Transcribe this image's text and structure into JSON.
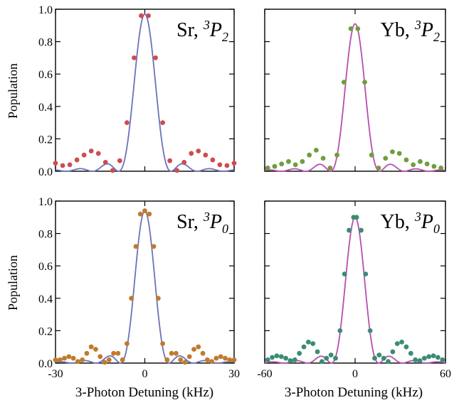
{
  "figure": {
    "ylabel": "Population",
    "xlabel": "3-Photon Detuning (kHz)"
  },
  "chart_data": [
    {
      "type": "scatter",
      "panel": "Sr, 3P2",
      "label": {
        "element": "Sr, ",
        "sup": "3",
        "term": "P",
        "sub": "2"
      },
      "xlim": [
        -30,
        30
      ],
      "ylim": [
        0,
        1
      ],
      "xticks": [
        -30,
        0,
        30
      ],
      "xticklabels": [],
      "yticks": [
        0,
        0.2,
        0.4,
        0.6,
        0.8,
        1.0
      ],
      "yticklabels": [
        "0.0",
        "0.2",
        "0.4",
        "0.6",
        "0.8",
        "1.0"
      ],
      "ylabel": "Population",
      "peak": 0.97,
      "fit_width_khz": 2.8,
      "dot_color": "#cc4d52",
      "line_color": "#6b72bb",
      "x": [
        -30,
        -27.6,
        -25.2,
        -22.8,
        -20.4,
        -18,
        -15.6,
        -13.2,
        -10.8,
        -8.4,
        -6,
        -3.6,
        -1.2,
        1.2,
        3.6,
        6,
        8.4,
        10.8,
        13.2,
        15.6,
        18,
        20.4,
        22.8,
        25.2,
        27.6,
        30
      ],
      "y": [
        0.05,
        0.035,
        0.04,
        0.07,
        0.1,
        0.125,
        0.11,
        0.055,
        0.005,
        0.065,
        0.3,
        0.7,
        0.96,
        0.96,
        0.7,
        0.3,
        0.065,
        0.005,
        0.055,
        0.11,
        0.125,
        0.1,
        0.07,
        0.04,
        0.035,
        0.05
      ]
    },
    {
      "type": "scatter",
      "panel": "Yb, 3P2",
      "label": {
        "element": "Yb, ",
        "sup": "3",
        "term": "P",
        "sub": "2"
      },
      "xlim": [
        -60,
        60
      ],
      "ylim": [
        0,
        1
      ],
      "xticks": [
        -60,
        0,
        60
      ],
      "xticklabels": [],
      "yticks": [
        0,
        0.2,
        0.4,
        0.6,
        0.8,
        1.0
      ],
      "yticklabels": [],
      "peak": 0.91,
      "fit_width_khz": 5.2,
      "dot_color": "#6e9e3e",
      "line_color": "#b84dae",
      "x": [
        -58,
        -53.4,
        -48.8,
        -44.2,
        -39.6,
        -35,
        -30.4,
        -25.8,
        -21.2,
        -16.6,
        -12,
        -7.4,
        -2.8,
        1.8,
        6.4,
        11,
        15.6,
        20.2,
        24.8,
        29.4,
        34,
        38.6,
        43.2,
        47.8,
        52.4,
        57
      ],
      "y": [
        0.02,
        0.03,
        0.045,
        0.06,
        0.04,
        0.06,
        0.1,
        0.13,
        0.08,
        0.02,
        0.1,
        0.55,
        0.88,
        0.88,
        0.55,
        0.1,
        0.02,
        0.08,
        0.12,
        0.11,
        0.07,
        0.04,
        0.06,
        0.045,
        0.03,
        0.02
      ]
    },
    {
      "type": "scatter",
      "panel": "Sr, 3P0",
      "label": {
        "element": "Sr, ",
        "sup": "3",
        "term": "P",
        "sub": "0"
      },
      "xlim": [
        -30,
        30
      ],
      "ylim": [
        0,
        1
      ],
      "xticks": [
        -30,
        0,
        30
      ],
      "xticklabels": [
        "-30",
        "0",
        "30"
      ],
      "yticks": [
        0,
        0.2,
        0.4,
        0.6,
        0.8,
        1.0
      ],
      "yticklabels": [
        "0.0",
        "0.2",
        "0.4",
        "0.6",
        "0.8",
        "1.0"
      ],
      "ylabel": "Population",
      "peak": 0.94,
      "fit_width_khz": 2.6,
      "dot_color": "#c07a2c",
      "line_color": "#6b72bb",
      "x": [
        -30,
        -28.5,
        -27,
        -25.5,
        -24,
        -22.5,
        -21,
        -19.5,
        -18,
        -16.5,
        -15,
        -13.5,
        -12,
        -10.5,
        -9,
        -7.5,
        -6,
        -4.5,
        -3,
        -1.5,
        0,
        1.5,
        3,
        4.5,
        6,
        7.5,
        9,
        10.5,
        12,
        13.5,
        15,
        16.5,
        18,
        19.5,
        21,
        22.5,
        24,
        25.5,
        27,
        28.5,
        30
      ],
      "y": [
        0.02,
        0.02,
        0.03,
        0.04,
        0.03,
        0.01,
        0.02,
        0.06,
        0.1,
        0.085,
        0.04,
        0.005,
        0.02,
        0.06,
        0.06,
        0.02,
        0.12,
        0.4,
        0.72,
        0.92,
        0.94,
        0.92,
        0.72,
        0.4,
        0.12,
        0.02,
        0.06,
        0.06,
        0.02,
        0.005,
        0.04,
        0.085,
        0.1,
        0.06,
        0.02,
        0.01,
        0.03,
        0.04,
        0.03,
        0.02,
        0.02
      ]
    },
    {
      "type": "scatter",
      "panel": "Yb, 3P0",
      "label": {
        "element": "Yb, ",
        "sup": "3",
        "term": "P",
        "sub": "0"
      },
      "xlim": [
        -60,
        60
      ],
      "ylim": [
        0,
        1
      ],
      "xticks": [
        -60,
        0,
        60
      ],
      "xticklabels": [
        "-60",
        "0",
        "60"
      ],
      "yticks": [
        0,
        0.2,
        0.4,
        0.6,
        0.8,
        1.0
      ],
      "yticklabels": [],
      "peak": 0.9,
      "fit_width_khz": 5.0,
      "dot_color": "#3a8c73",
      "line_color": "#b84dae",
      "x": [
        -58,
        -55,
        -52,
        -49,
        -46,
        -43,
        -40,
        -37,
        -34,
        -31,
        -28,
        -25,
        -22,
        -19,
        -16,
        -13,
        -10,
        -7,
        -4,
        -1,
        1,
        4,
        7,
        10,
        13,
        16,
        19,
        22,
        25,
        28,
        31,
        34,
        37,
        40,
        43,
        46,
        49,
        52,
        55,
        58
      ],
      "y": [
        0.02,
        0.035,
        0.045,
        0.04,
        0.03,
        0.015,
        0.02,
        0.06,
        0.1,
        0.13,
        0.12,
        0.07,
        0.01,
        0.03,
        0.05,
        0.03,
        0.2,
        0.55,
        0.82,
        0.9,
        0.9,
        0.82,
        0.55,
        0.2,
        0.03,
        0.05,
        0.03,
        0.01,
        0.07,
        0.12,
        0.13,
        0.1,
        0.06,
        0.02,
        0.015,
        0.03,
        0.04,
        0.045,
        0.035,
        0.02
      ]
    }
  ]
}
